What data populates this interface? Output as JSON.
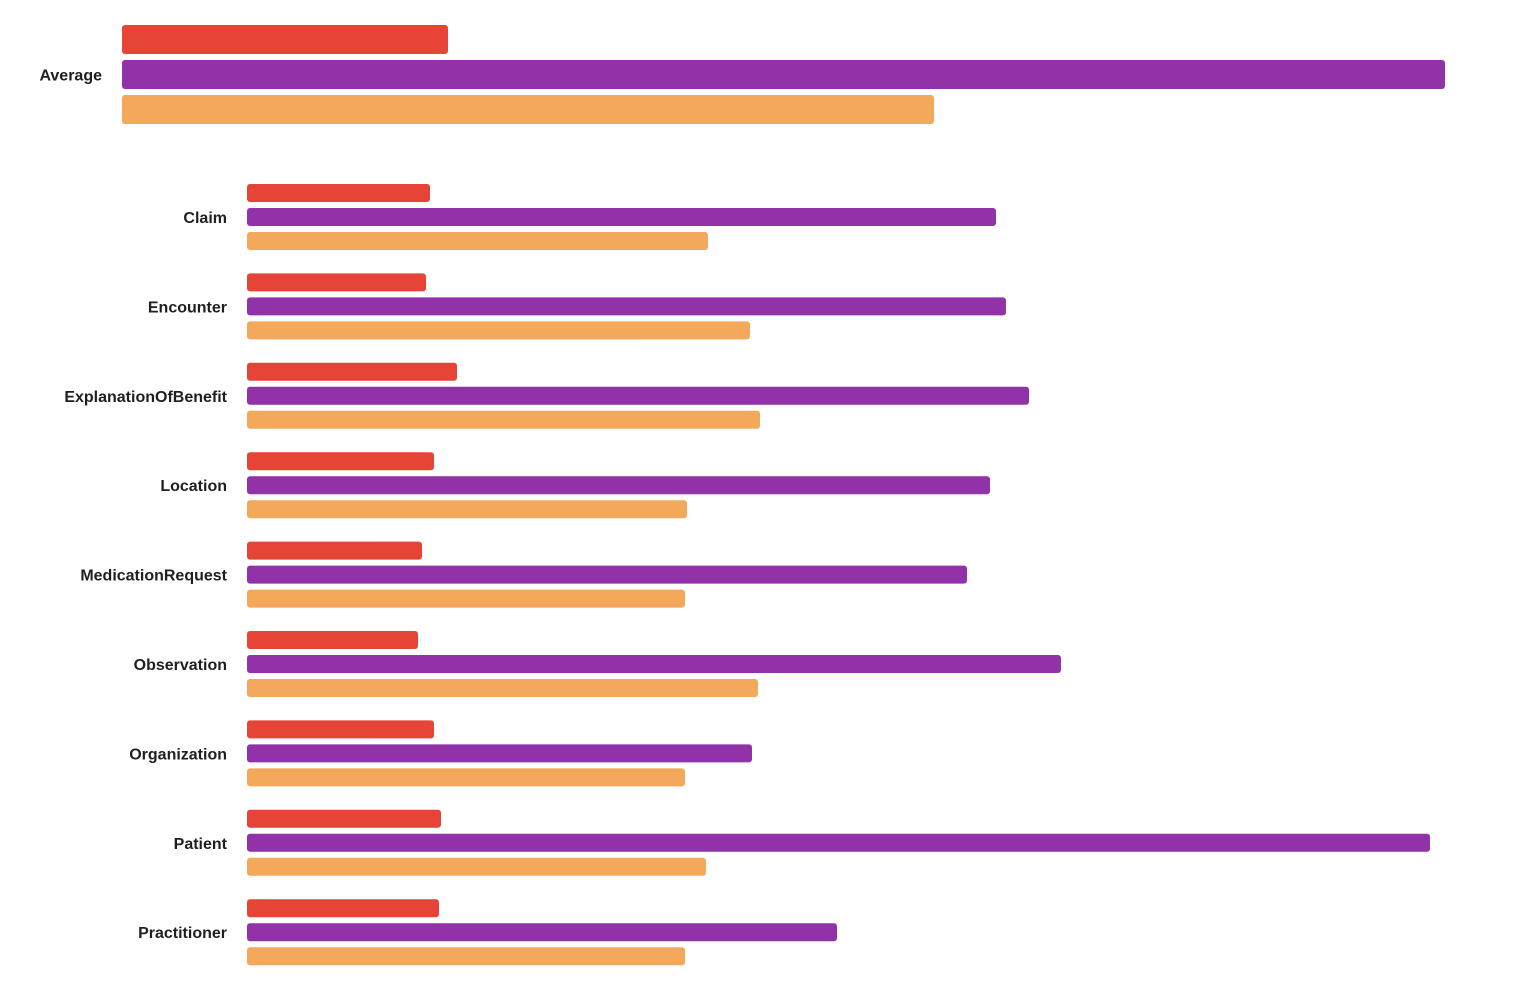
{
  "chart_data": [
    {
      "type": "bar",
      "orientation": "horizontal",
      "categories": [
        "Average"
      ],
      "colors": [
        "#e64436",
        "#9132a8",
        "#f4a85b"
      ],
      "series": [
        {
          "values": [
            326
          ]
        },
        {
          "values": [
            1323
          ]
        },
        {
          "values": [
            812
          ]
        }
      ],
      "xlim": [
        0,
        1330
      ],
      "grid": false,
      "axes_visible": false
    },
    {
      "type": "bar",
      "orientation": "horizontal",
      "categories": [
        "Claim",
        "Encounter",
        "ExplanationOfBenefit",
        "Location",
        "MedicationRequest",
        "Observation",
        "Organization",
        "Patient",
        "Practitioner"
      ],
      "colors": [
        "#e64436",
        "#9132a8",
        "#f4a85b"
      ],
      "series": [
        {
          "values": [
            183,
            179,
            210,
            187,
            175,
            171,
            187,
            194,
            192
          ]
        },
        {
          "values": [
            749,
            759,
            782,
            743,
            720,
            814,
            505,
            1183,
            590
          ]
        },
        {
          "values": [
            461,
            503,
            513,
            440,
            438,
            511,
            438,
            459,
            438
          ]
        }
      ],
      "xlim": [
        0,
        1183
      ],
      "grid": false,
      "axes_visible": false
    }
  ]
}
